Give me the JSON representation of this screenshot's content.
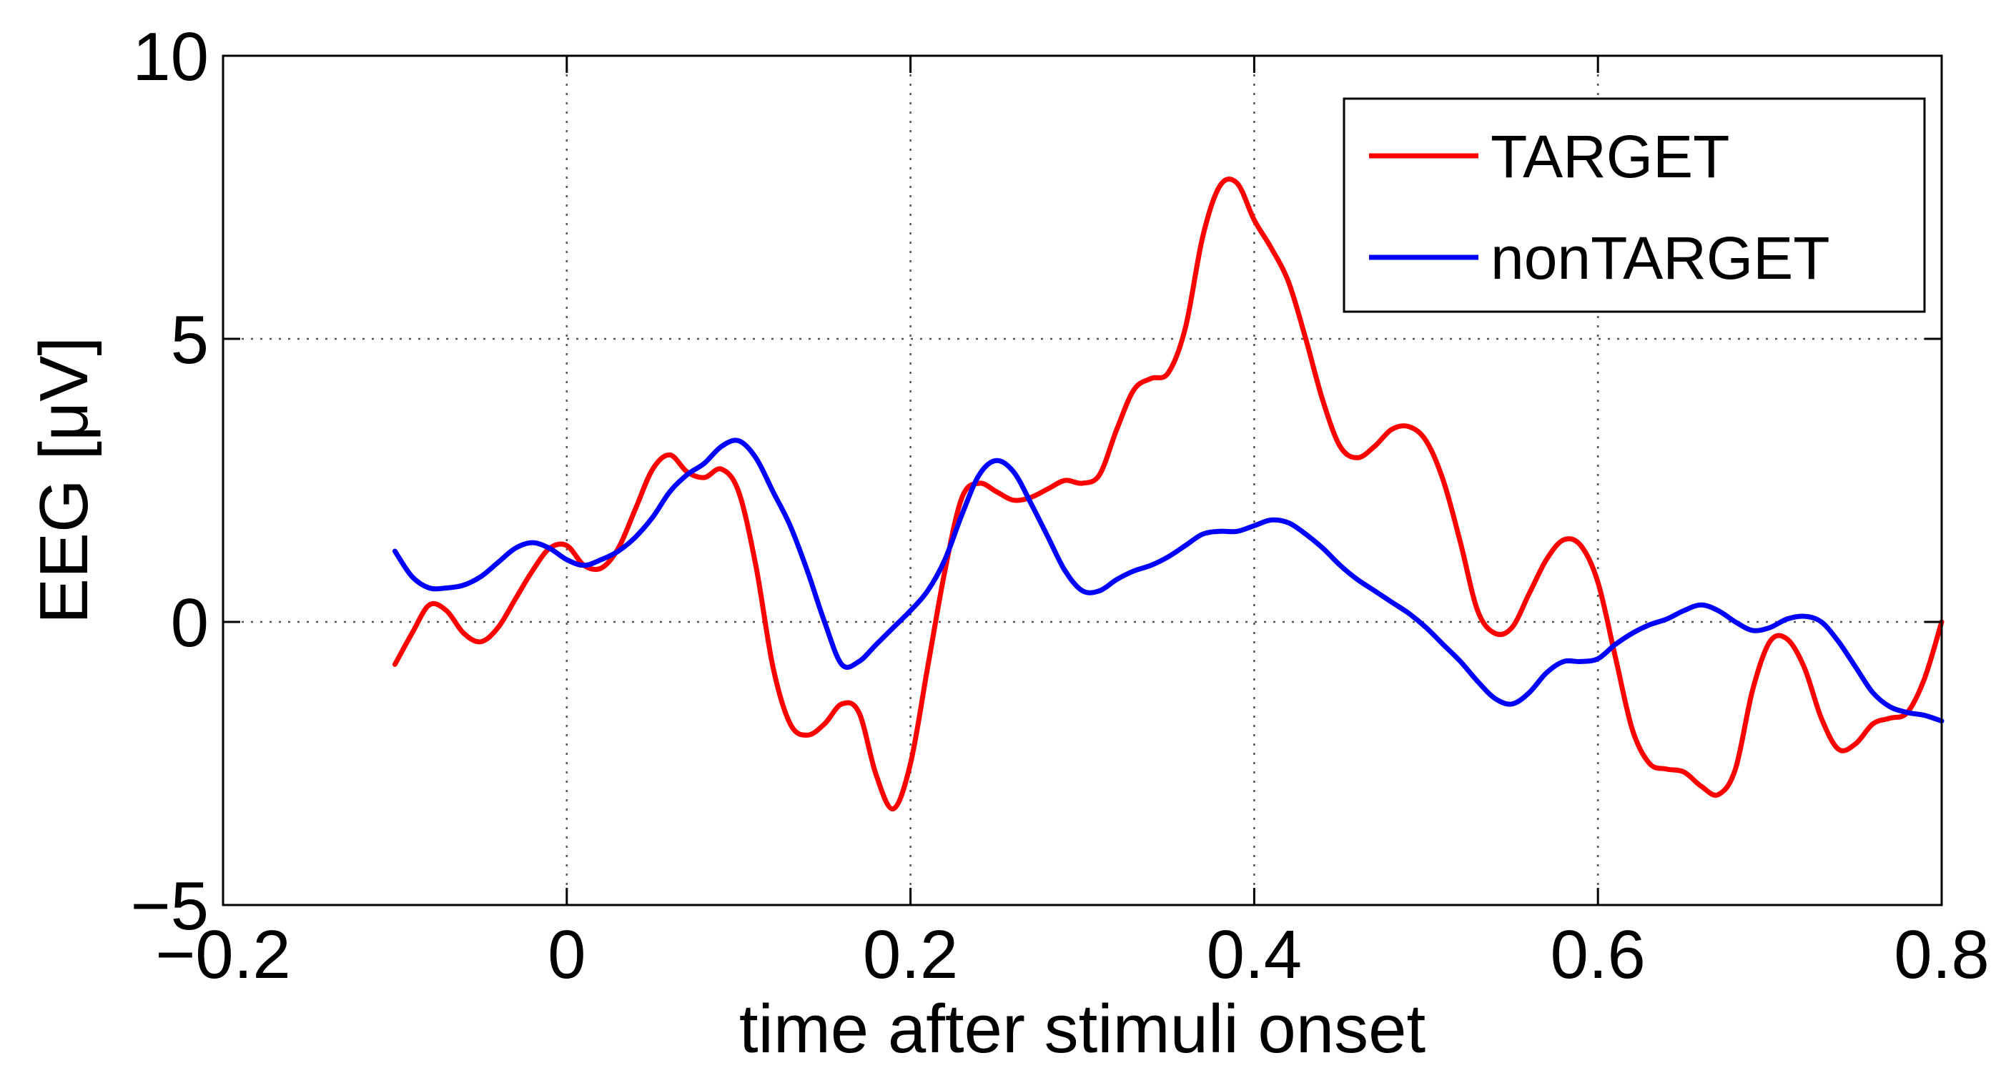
{
  "chart_data": {
    "type": "line",
    "xlabel": "time after stimuli onset",
    "ylabel": "EEG [μV]",
    "xlim": [
      -0.2,
      0.8
    ],
    "ylim": [
      -5,
      10
    ],
    "xticks": [
      -0.2,
      0,
      0.2,
      0.4,
      0.6,
      0.8
    ],
    "yticks": [
      -5,
      0,
      5,
      10
    ],
    "xtick_labels": [
      "−0.2",
      "0",
      "0.2",
      "0.4",
      "0.6",
      "0.8"
    ],
    "ytick_labels": [
      "−5",
      "0",
      "5",
      "10"
    ],
    "grid": true,
    "legend_position": "top-right",
    "series": [
      {
        "name": "TARGET",
        "color": "#ff0000",
        "x": [
          -0.1,
          -0.09,
          -0.08,
          -0.07,
          -0.06,
          -0.05,
          -0.04,
          -0.03,
          -0.02,
          -0.01,
          0.0,
          0.01,
          0.02,
          0.03,
          0.04,
          0.05,
          0.06,
          0.07,
          0.08,
          0.09,
          0.1,
          0.11,
          0.12,
          0.13,
          0.14,
          0.15,
          0.16,
          0.17,
          0.18,
          0.19,
          0.2,
          0.21,
          0.22,
          0.23,
          0.24,
          0.25,
          0.26,
          0.27,
          0.28,
          0.29,
          0.3,
          0.31,
          0.32,
          0.33,
          0.34,
          0.35,
          0.36,
          0.37,
          0.38,
          0.39,
          0.4,
          0.41,
          0.42,
          0.43,
          0.44,
          0.45,
          0.46,
          0.47,
          0.48,
          0.49,
          0.5,
          0.51,
          0.52,
          0.53,
          0.54,
          0.55,
          0.56,
          0.57,
          0.58,
          0.59,
          0.6,
          0.61,
          0.62,
          0.63,
          0.64,
          0.65,
          0.66,
          0.67,
          0.68,
          0.69,
          0.7,
          0.71,
          0.72,
          0.73,
          0.74,
          0.75,
          0.76,
          0.77,
          0.78,
          0.79,
          0.8
        ],
        "y": [
          -0.75,
          -0.2,
          0.3,
          0.2,
          -0.2,
          -0.35,
          -0.1,
          0.4,
          0.9,
          1.3,
          1.35,
          1.0,
          0.95,
          1.3,
          2.0,
          2.7,
          2.95,
          2.65,
          2.55,
          2.7,
          2.3,
          1.0,
          -0.8,
          -1.8,
          -2.0,
          -1.8,
          -1.45,
          -1.6,
          -2.7,
          -3.3,
          -2.5,
          -0.8,
          0.9,
          2.2,
          2.45,
          2.3,
          2.15,
          2.2,
          2.35,
          2.5,
          2.45,
          2.6,
          3.4,
          4.1,
          4.3,
          4.4,
          5.2,
          6.8,
          7.7,
          7.75,
          7.1,
          6.6,
          6.0,
          5.0,
          3.9,
          3.1,
          2.9,
          3.1,
          3.4,
          3.45,
          3.2,
          2.5,
          1.4,
          0.2,
          -0.2,
          -0.1,
          0.5,
          1.1,
          1.45,
          1.35,
          0.7,
          -0.6,
          -1.9,
          -2.5,
          -2.6,
          -2.65,
          -2.9,
          -3.05,
          -2.6,
          -1.2,
          -0.35,
          -0.3,
          -0.8,
          -1.7,
          -2.25,
          -2.15,
          -1.8,
          -1.7,
          -1.6,
          -1.0,
          0.0
        ]
      },
      {
        "name": "nonTARGET",
        "color": "#0000ff",
        "x": [
          -0.1,
          -0.09,
          -0.08,
          -0.07,
          -0.06,
          -0.05,
          -0.04,
          -0.03,
          -0.02,
          -0.01,
          0.0,
          0.01,
          0.02,
          0.03,
          0.04,
          0.05,
          0.06,
          0.07,
          0.08,
          0.09,
          0.1,
          0.11,
          0.12,
          0.13,
          0.14,
          0.15,
          0.16,
          0.17,
          0.18,
          0.19,
          0.2,
          0.21,
          0.22,
          0.23,
          0.24,
          0.25,
          0.26,
          0.27,
          0.28,
          0.29,
          0.3,
          0.31,
          0.32,
          0.33,
          0.34,
          0.35,
          0.36,
          0.37,
          0.38,
          0.39,
          0.4,
          0.41,
          0.42,
          0.43,
          0.44,
          0.45,
          0.46,
          0.47,
          0.48,
          0.49,
          0.5,
          0.51,
          0.52,
          0.53,
          0.54,
          0.55,
          0.56,
          0.57,
          0.58,
          0.59,
          0.6,
          0.61,
          0.62,
          0.63,
          0.64,
          0.65,
          0.66,
          0.67,
          0.68,
          0.69,
          0.7,
          0.71,
          0.72,
          0.73,
          0.74,
          0.75,
          0.76,
          0.77,
          0.78,
          0.79,
          0.8
        ],
        "y": [
          1.25,
          0.8,
          0.6,
          0.6,
          0.65,
          0.8,
          1.05,
          1.3,
          1.4,
          1.3,
          1.1,
          1.0,
          1.1,
          1.25,
          1.5,
          1.85,
          2.3,
          2.6,
          2.8,
          3.1,
          3.2,
          2.9,
          2.3,
          1.7,
          0.9,
          0.0,
          -0.75,
          -0.7,
          -0.4,
          -0.1,
          0.2,
          0.55,
          1.1,
          1.9,
          2.6,
          2.85,
          2.65,
          2.1,
          1.5,
          0.9,
          0.55,
          0.55,
          0.75,
          0.9,
          1.0,
          1.15,
          1.35,
          1.55,
          1.6,
          1.6,
          1.7,
          1.8,
          1.75,
          1.55,
          1.3,
          1.0,
          0.75,
          0.55,
          0.35,
          0.15,
          -0.1,
          -0.4,
          -0.7,
          -1.05,
          -1.35,
          -1.45,
          -1.25,
          -0.9,
          -0.7,
          -0.7,
          -0.65,
          -0.4,
          -0.2,
          -0.05,
          0.05,
          0.2,
          0.3,
          0.2,
          0.0,
          -0.15,
          -0.1,
          0.05,
          0.1,
          0.0,
          -0.35,
          -0.8,
          -1.25,
          -1.5,
          -1.6,
          -1.65,
          -1.75
        ]
      }
    ]
  }
}
